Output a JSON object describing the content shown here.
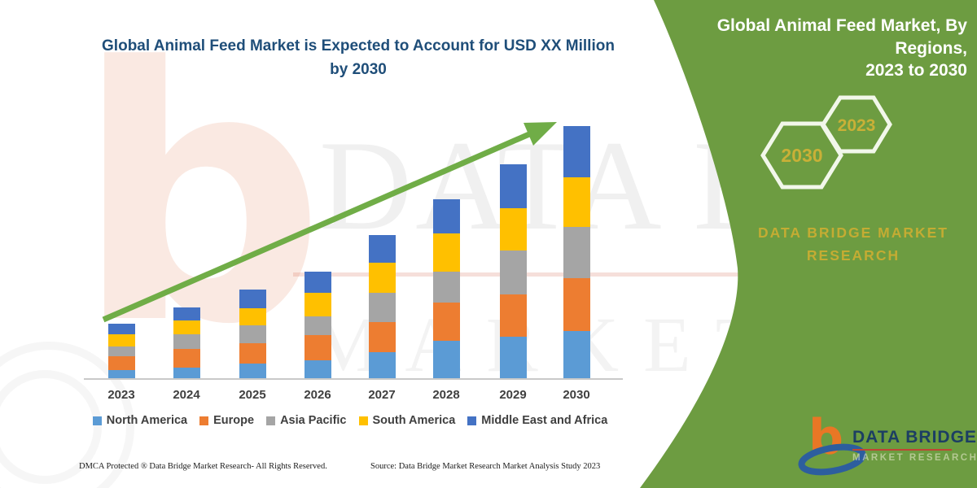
{
  "chart": {
    "title_line1": "Global Animal Feed Market is Expected to Account for USD XX Million",
    "title_line2": "by 2030",
    "title_color": "#1F4E79",
    "label_color": "#3F3F3F",
    "axis_color": "#C9C9C9",
    "trend_arrow_color": "#70AD47"
  },
  "chart_data": {
    "type": "bar",
    "stacked": true,
    "title": "Global Animal Feed Market is Expected to Account for USD XX Million by 2030",
    "categories": [
      "2023",
      "2024",
      "2025",
      "2026",
      "2027",
      "2028",
      "2029",
      "2030"
    ],
    "series": [
      {
        "name": "North America",
        "color": "#5B9BD5",
        "values": [
          11,
          14,
          19,
          23,
          33,
          47,
          52,
          59
        ]
      },
      {
        "name": "Europe",
        "color": "#ED7D31",
        "values": [
          17,
          23,
          25,
          31,
          37,
          47,
          52,
          65
        ]
      },
      {
        "name": "Asia Pacific",
        "color": "#A5A5A5",
        "values": [
          12,
          18,
          22,
          23,
          36,
          38,
          54,
          63
        ]
      },
      {
        "name": "South America",
        "color": "#FFC000",
        "values": [
          15,
          17,
          21,
          29,
          37,
          47,
          52,
          61
        ]
      },
      {
        "name": "Middle East and Africa",
        "color": "#4472C4",
        "values": [
          13,
          16,
          23,
          26,
          34,
          42,
          54,
          63
        ]
      }
    ],
    "totals": [
      68,
      88,
      110,
      132,
      177,
      221,
      264,
      311
    ],
    "value_axis": {
      "visible": false,
      "units": "relative units (chart labels values as USD XX Million placeholder)",
      "ylim": [
        0,
        326
      ]
    },
    "xlabel": "",
    "ylabel": "",
    "grid": false,
    "legend_position": "bottom",
    "annotations": [
      "upward green trend arrow from 2023 to 2030"
    ]
  },
  "banner": {
    "title_line1": "Global Animal Feed Market, By Regions,",
    "title_line2": "2023 to 2030",
    "hexagon_left": "2030",
    "hexagon_right": "2023",
    "brand_line1": "DATA BRIDGE MARKET",
    "brand_line2": "RESEARCH",
    "panel_color": "#6D9C41",
    "gold_color": "#C9B037"
  },
  "logo": {
    "icon": "b",
    "brand": "DATA BRIDGE",
    "sub": "MARKET RESEARCH"
  },
  "watermark": {
    "icon": "b",
    "line1": "DATA BRIDGE",
    "line2": "MARKET RE"
  },
  "footer": {
    "left": "DMCA Protected ® Data Bridge Market Research-  All Rights Reserved.",
    "source": "Source: Data Bridge Market Research  Market Analysis Study 2023"
  }
}
